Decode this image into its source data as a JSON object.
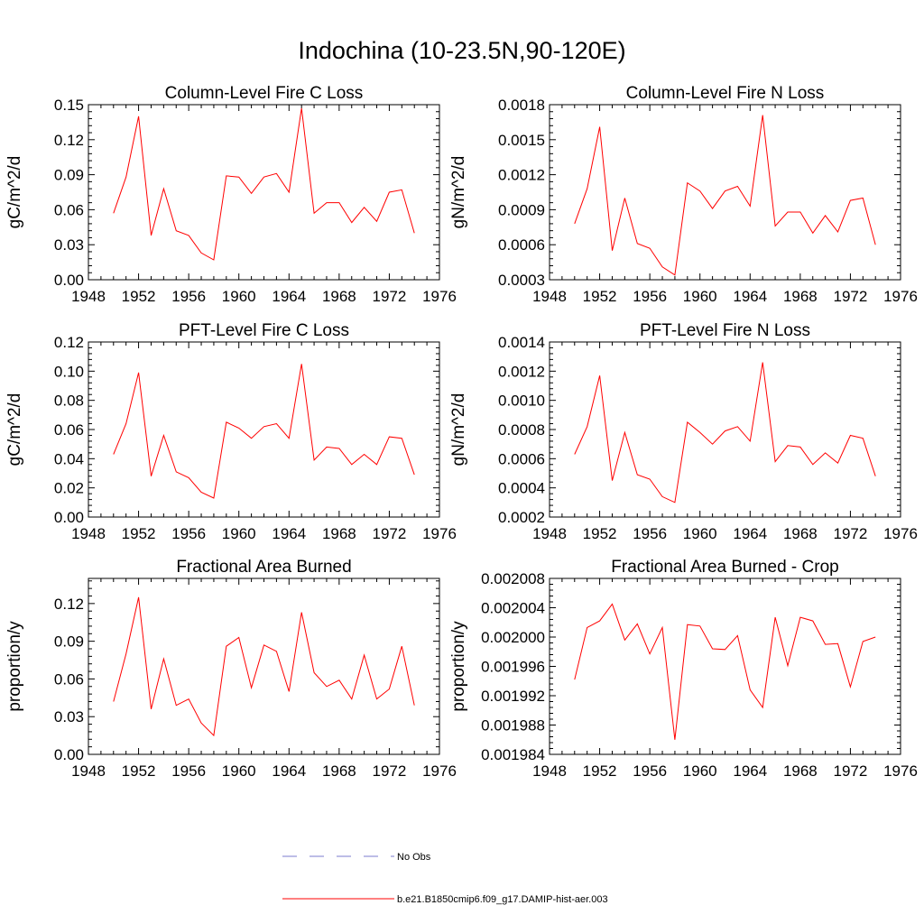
{
  "figure": {
    "title": "Indochina (10-23.5N,90-120E)"
  },
  "legend": {
    "items": [
      {
        "label": "No Obs",
        "color": "#7b7bcf",
        "style": "dashed"
      },
      {
        "label": "b.e21.B1850cmip6.f09_g17.DAMIP-hist-aer.003",
        "color": "#ff0000",
        "style": "solid"
      }
    ]
  },
  "chart_data": [
    {
      "type": "line",
      "title": "Column-Level Fire C Loss",
      "ylabel": "gC/m^2/d",
      "xlim": [
        1948,
        1976
      ],
      "xticks": [
        "1948",
        "1952",
        "1956",
        "1960",
        "1964",
        "1968",
        "1972",
        "1976"
      ],
      "ylim": [
        0.0,
        0.15
      ],
      "yticks": [
        "0.00",
        "0.03",
        "0.06",
        "0.09",
        "0.12",
        "0.15"
      ],
      "series": [
        {
          "name": "b.e21.B1850cmip6.f09_g17.DAMIP-hist-aer.003",
          "color": "#ff0000",
          "x": [
            1950,
            1951,
            1952,
            1953,
            1954,
            1955,
            1956,
            1957,
            1958,
            1959,
            1960,
            1961,
            1962,
            1963,
            1964,
            1965,
            1966,
            1967,
            1968,
            1969,
            1970,
            1971,
            1972,
            1973,
            1974
          ],
          "y": [
            0.057,
            0.088,
            0.14,
            0.038,
            0.078,
            0.042,
            0.038,
            0.023,
            0.017,
            0.089,
            0.088,
            0.074,
            0.088,
            0.091,
            0.075,
            0.147,
            0.057,
            0.066,
            0.066,
            0.049,
            0.062,
            0.05,
            0.075,
            0.077,
            0.04
          ]
        }
      ]
    },
    {
      "type": "line",
      "title": "Column-Level Fire N Loss",
      "ylabel": "gN/m^2/d",
      "xlim": [
        1948,
        1976
      ],
      "xticks": [
        "1948",
        "1952",
        "1956",
        "1960",
        "1964",
        "1968",
        "1972",
        "1976"
      ],
      "ylim": [
        0.0003,
        0.0018
      ],
      "yticks": [
        "0.0003",
        "0.0006",
        "0.0009",
        "0.0012",
        "0.0015",
        "0.0018"
      ],
      "series": [
        {
          "name": "b.e21.B1850cmip6.f09_g17.DAMIP-hist-aer.003",
          "color": "#ff0000",
          "x": [
            1950,
            1951,
            1952,
            1953,
            1954,
            1955,
            1956,
            1957,
            1958,
            1959,
            1960,
            1961,
            1962,
            1963,
            1964,
            1965,
            1966,
            1967,
            1968,
            1969,
            1970,
            1971,
            1972,
            1973,
            1974
          ],
          "y": [
            0.00078,
            0.00108,
            0.00161,
            0.00055,
            0.001,
            0.00061,
            0.00057,
            0.00041,
            0.00034,
            0.00113,
            0.00106,
            0.00091,
            0.00106,
            0.0011,
            0.00093,
            0.00171,
            0.00076,
            0.00088,
            0.00088,
            0.0007,
            0.00085,
            0.00071,
            0.00098,
            0.001,
            0.0006
          ]
        }
      ]
    },
    {
      "type": "line",
      "title": "PFT-Level Fire C Loss",
      "ylabel": "gC/m^2/d",
      "xlim": [
        1948,
        1976
      ],
      "xticks": [
        "1948",
        "1952",
        "1956",
        "1960",
        "1964",
        "1968",
        "1972",
        "1976"
      ],
      "ylim": [
        0.0,
        0.12
      ],
      "yticks": [
        "0.00",
        "0.02",
        "0.04",
        "0.06",
        "0.08",
        "0.10",
        "0.12"
      ],
      "series": [
        {
          "name": "b.e21.B1850cmip6.f09_g17.DAMIP-hist-aer.003",
          "color": "#ff0000",
          "x": [
            1950,
            1951,
            1952,
            1953,
            1954,
            1955,
            1956,
            1957,
            1958,
            1959,
            1960,
            1961,
            1962,
            1963,
            1964,
            1965,
            1966,
            1967,
            1968,
            1969,
            1970,
            1971,
            1972,
            1973,
            1974
          ],
          "y": [
            0.043,
            0.064,
            0.099,
            0.028,
            0.056,
            0.031,
            0.027,
            0.017,
            0.013,
            0.065,
            0.061,
            0.054,
            0.062,
            0.064,
            0.054,
            0.105,
            0.039,
            0.048,
            0.047,
            0.036,
            0.043,
            0.036,
            0.055,
            0.054,
            0.029
          ]
        }
      ]
    },
    {
      "type": "line",
      "title": "PFT-Level Fire N Loss",
      "ylabel": "gN/m^2/d",
      "xlim": [
        1948,
        1976
      ],
      "xticks": [
        "1948",
        "1952",
        "1956",
        "1960",
        "1964",
        "1968",
        "1972",
        "1976"
      ],
      "ylim": [
        0.0002,
        0.0014
      ],
      "yticks": [
        "0.0002",
        "0.0004",
        "0.0006",
        "0.0008",
        "0.0010",
        "0.0012",
        "0.0014"
      ],
      "series": [
        {
          "name": "b.e21.B1850cmip6.f09_g17.DAMIP-hist-aer.003",
          "color": "#ff0000",
          "x": [
            1950,
            1951,
            1952,
            1953,
            1954,
            1955,
            1956,
            1957,
            1958,
            1959,
            1960,
            1961,
            1962,
            1963,
            1964,
            1965,
            1966,
            1967,
            1968,
            1969,
            1970,
            1971,
            1972,
            1973,
            1974
          ],
          "y": [
            0.00063,
            0.00082,
            0.00117,
            0.00045,
            0.00078,
            0.00049,
            0.00046,
            0.00034,
            0.0003,
            0.00085,
            0.00078,
            0.0007,
            0.00079,
            0.00082,
            0.00072,
            0.00126,
            0.00058,
            0.00069,
            0.00068,
            0.00056,
            0.00064,
            0.00057,
            0.00076,
            0.00074,
            0.00048
          ]
        }
      ]
    },
    {
      "type": "line",
      "title": "Fractional Area Burned",
      "ylabel": "proportion/y",
      "xlim": [
        1948,
        1976
      ],
      "xticks": [
        "1948",
        "1952",
        "1956",
        "1960",
        "1964",
        "1968",
        "1972",
        "1976"
      ],
      "ylim": [
        0.0,
        0.14
      ],
      "yticks": [
        "0.00",
        "0.03",
        "0.06",
        "0.09",
        "0.12"
      ],
      "ytick_values": [
        0.0,
        0.03,
        0.06,
        0.09,
        0.12
      ],
      "series": [
        {
          "name": "b.e21.B1850cmip6.f09_g17.DAMIP-hist-aer.003",
          "color": "#ff0000",
          "x": [
            1950,
            1951,
            1952,
            1953,
            1954,
            1955,
            1956,
            1957,
            1958,
            1959,
            1960,
            1961,
            1962,
            1963,
            1964,
            1965,
            1966,
            1967,
            1968,
            1969,
            1970,
            1971,
            1972,
            1973,
            1974
          ],
          "y": [
            0.042,
            0.08,
            0.125,
            0.036,
            0.076,
            0.039,
            0.044,
            0.025,
            0.015,
            0.086,
            0.093,
            0.053,
            0.087,
            0.082,
            0.05,
            0.113,
            0.065,
            0.054,
            0.059,
            0.044,
            0.079,
            0.044,
            0.052,
            0.086,
            0.039
          ]
        }
      ]
    },
    {
      "type": "line",
      "title": "Fractional Area Burned - Crop",
      "ylabel": "proportion/y",
      "xlim": [
        1948,
        1976
      ],
      "xticks": [
        "1948",
        "1952",
        "1956",
        "1960",
        "1964",
        "1968",
        "1972",
        "1976"
      ],
      "ylim": [
        0.001984,
        0.002008
      ],
      "yticks": [
        "0.001984",
        "0.001988",
        "0.001992",
        "0.001996",
        "0.002000",
        "0.002004",
        "0.002008"
      ],
      "series": [
        {
          "name": "b.e21.B1850cmip6.f09_g17.DAMIP-hist-aer.003",
          "color": "#ff0000",
          "x": [
            1950,
            1951,
            1952,
            1953,
            1954,
            1955,
            1956,
            1957,
            1958,
            1959,
            1960,
            1961,
            1962,
            1963,
            1964,
            1965,
            1966,
            1967,
            1968,
            1969,
            1970,
            1971,
            1972,
            1973,
            1974
          ],
          "y": [
            0.0019942,
            0.0020013,
            0.0020022,
            0.0020045,
            0.0019996,
            0.0020018,
            0.0019977,
            0.0020013,
            0.001986,
            0.0020017,
            0.0020015,
            0.0019984,
            0.0019983,
            0.0020002,
            0.0019928,
            0.0019904,
            0.0020027,
            0.0019961,
            0.0020027,
            0.0020022,
            0.001999,
            0.0019991,
            0.0019932,
            0.0019994,
            0.002
          ]
        }
      ]
    }
  ]
}
